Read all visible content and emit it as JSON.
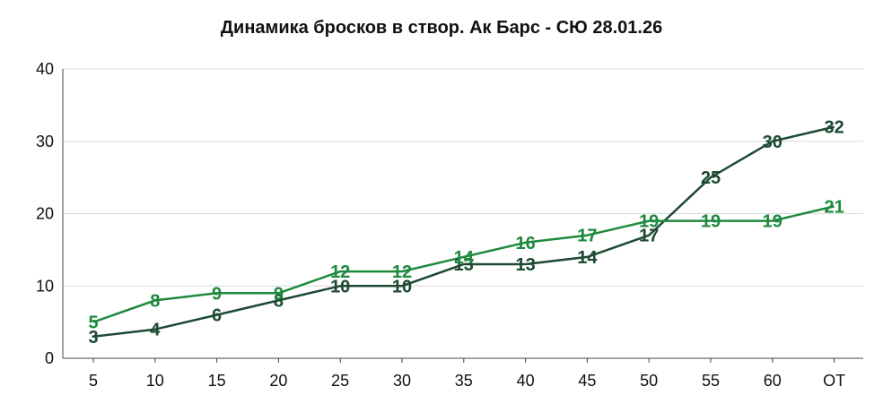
{
  "chart_data": {
    "type": "line",
    "title": "Динамика бросков в створ. Ак Барс - СЮ 28.01.26",
    "categories": [
      "5",
      "10",
      "15",
      "20",
      "25",
      "30",
      "35",
      "40",
      "45",
      "50",
      "55",
      "60",
      "ОТ"
    ],
    "series": [
      {
        "color": "#1e4a33",
        "values": [
          3,
          4,
          6,
          8,
          10,
          10,
          13,
          13,
          14,
          17,
          25,
          30,
          32
        ]
      },
      {
        "color": "#1f8a3f",
        "values": [
          5,
          8,
          9,
          9,
          12,
          12,
          14,
          16,
          17,
          19,
          19,
          19,
          21
        ]
      }
    ],
    "xlabel": "",
    "ylabel": "",
    "ylim": [
      0,
      40
    ],
    "yticks": [
      "0",
      "10",
      "20",
      "30",
      "40"
    ],
    "grid": true,
    "legend": "none"
  }
}
